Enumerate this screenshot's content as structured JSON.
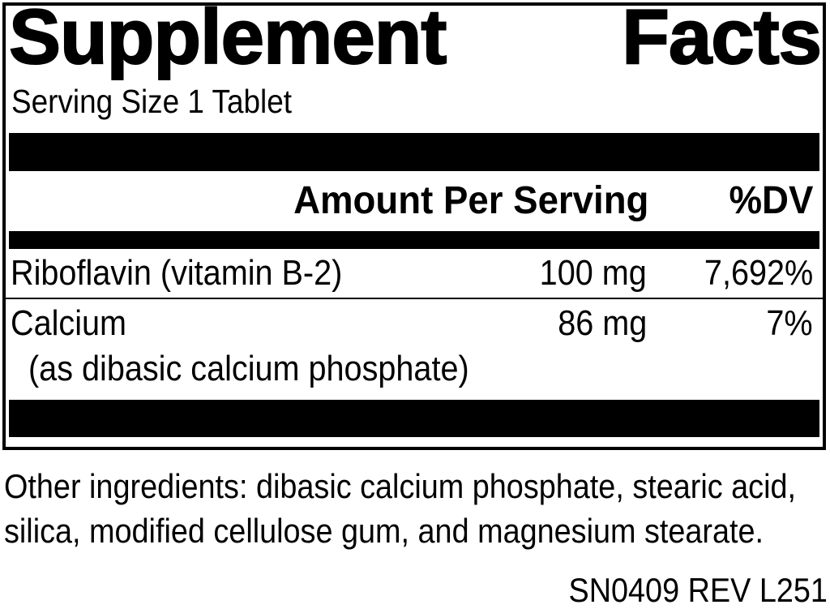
{
  "label": {
    "title": "Supplement Facts",
    "title_words": {
      "left": "Supplement",
      "right": "Facts"
    },
    "serving_size": "Serving Size 1 Tablet",
    "columns": {
      "amount_header": "Amount Per Serving",
      "dv_header": "%DV"
    },
    "nutrients": [
      {
        "name": "Riboflavin (vitamin B-2)",
        "amount": "100 mg",
        "dv": "7,692%"
      },
      {
        "name": "Calcium",
        "name_detail": "(as dibasic calcium phosphate)",
        "amount": "86 mg",
        "dv": "7%"
      }
    ],
    "other_ingredients": {
      "line1": "Other ingredients: dibasic calcium phosphate, stearic acid,",
      "line2": "silica, modified cellulose gum, and magnesium stearate."
    },
    "code": "SN0409 REV L251"
  },
  "colors": {
    "ink": "#000000",
    "background": "#ffffff"
  }
}
